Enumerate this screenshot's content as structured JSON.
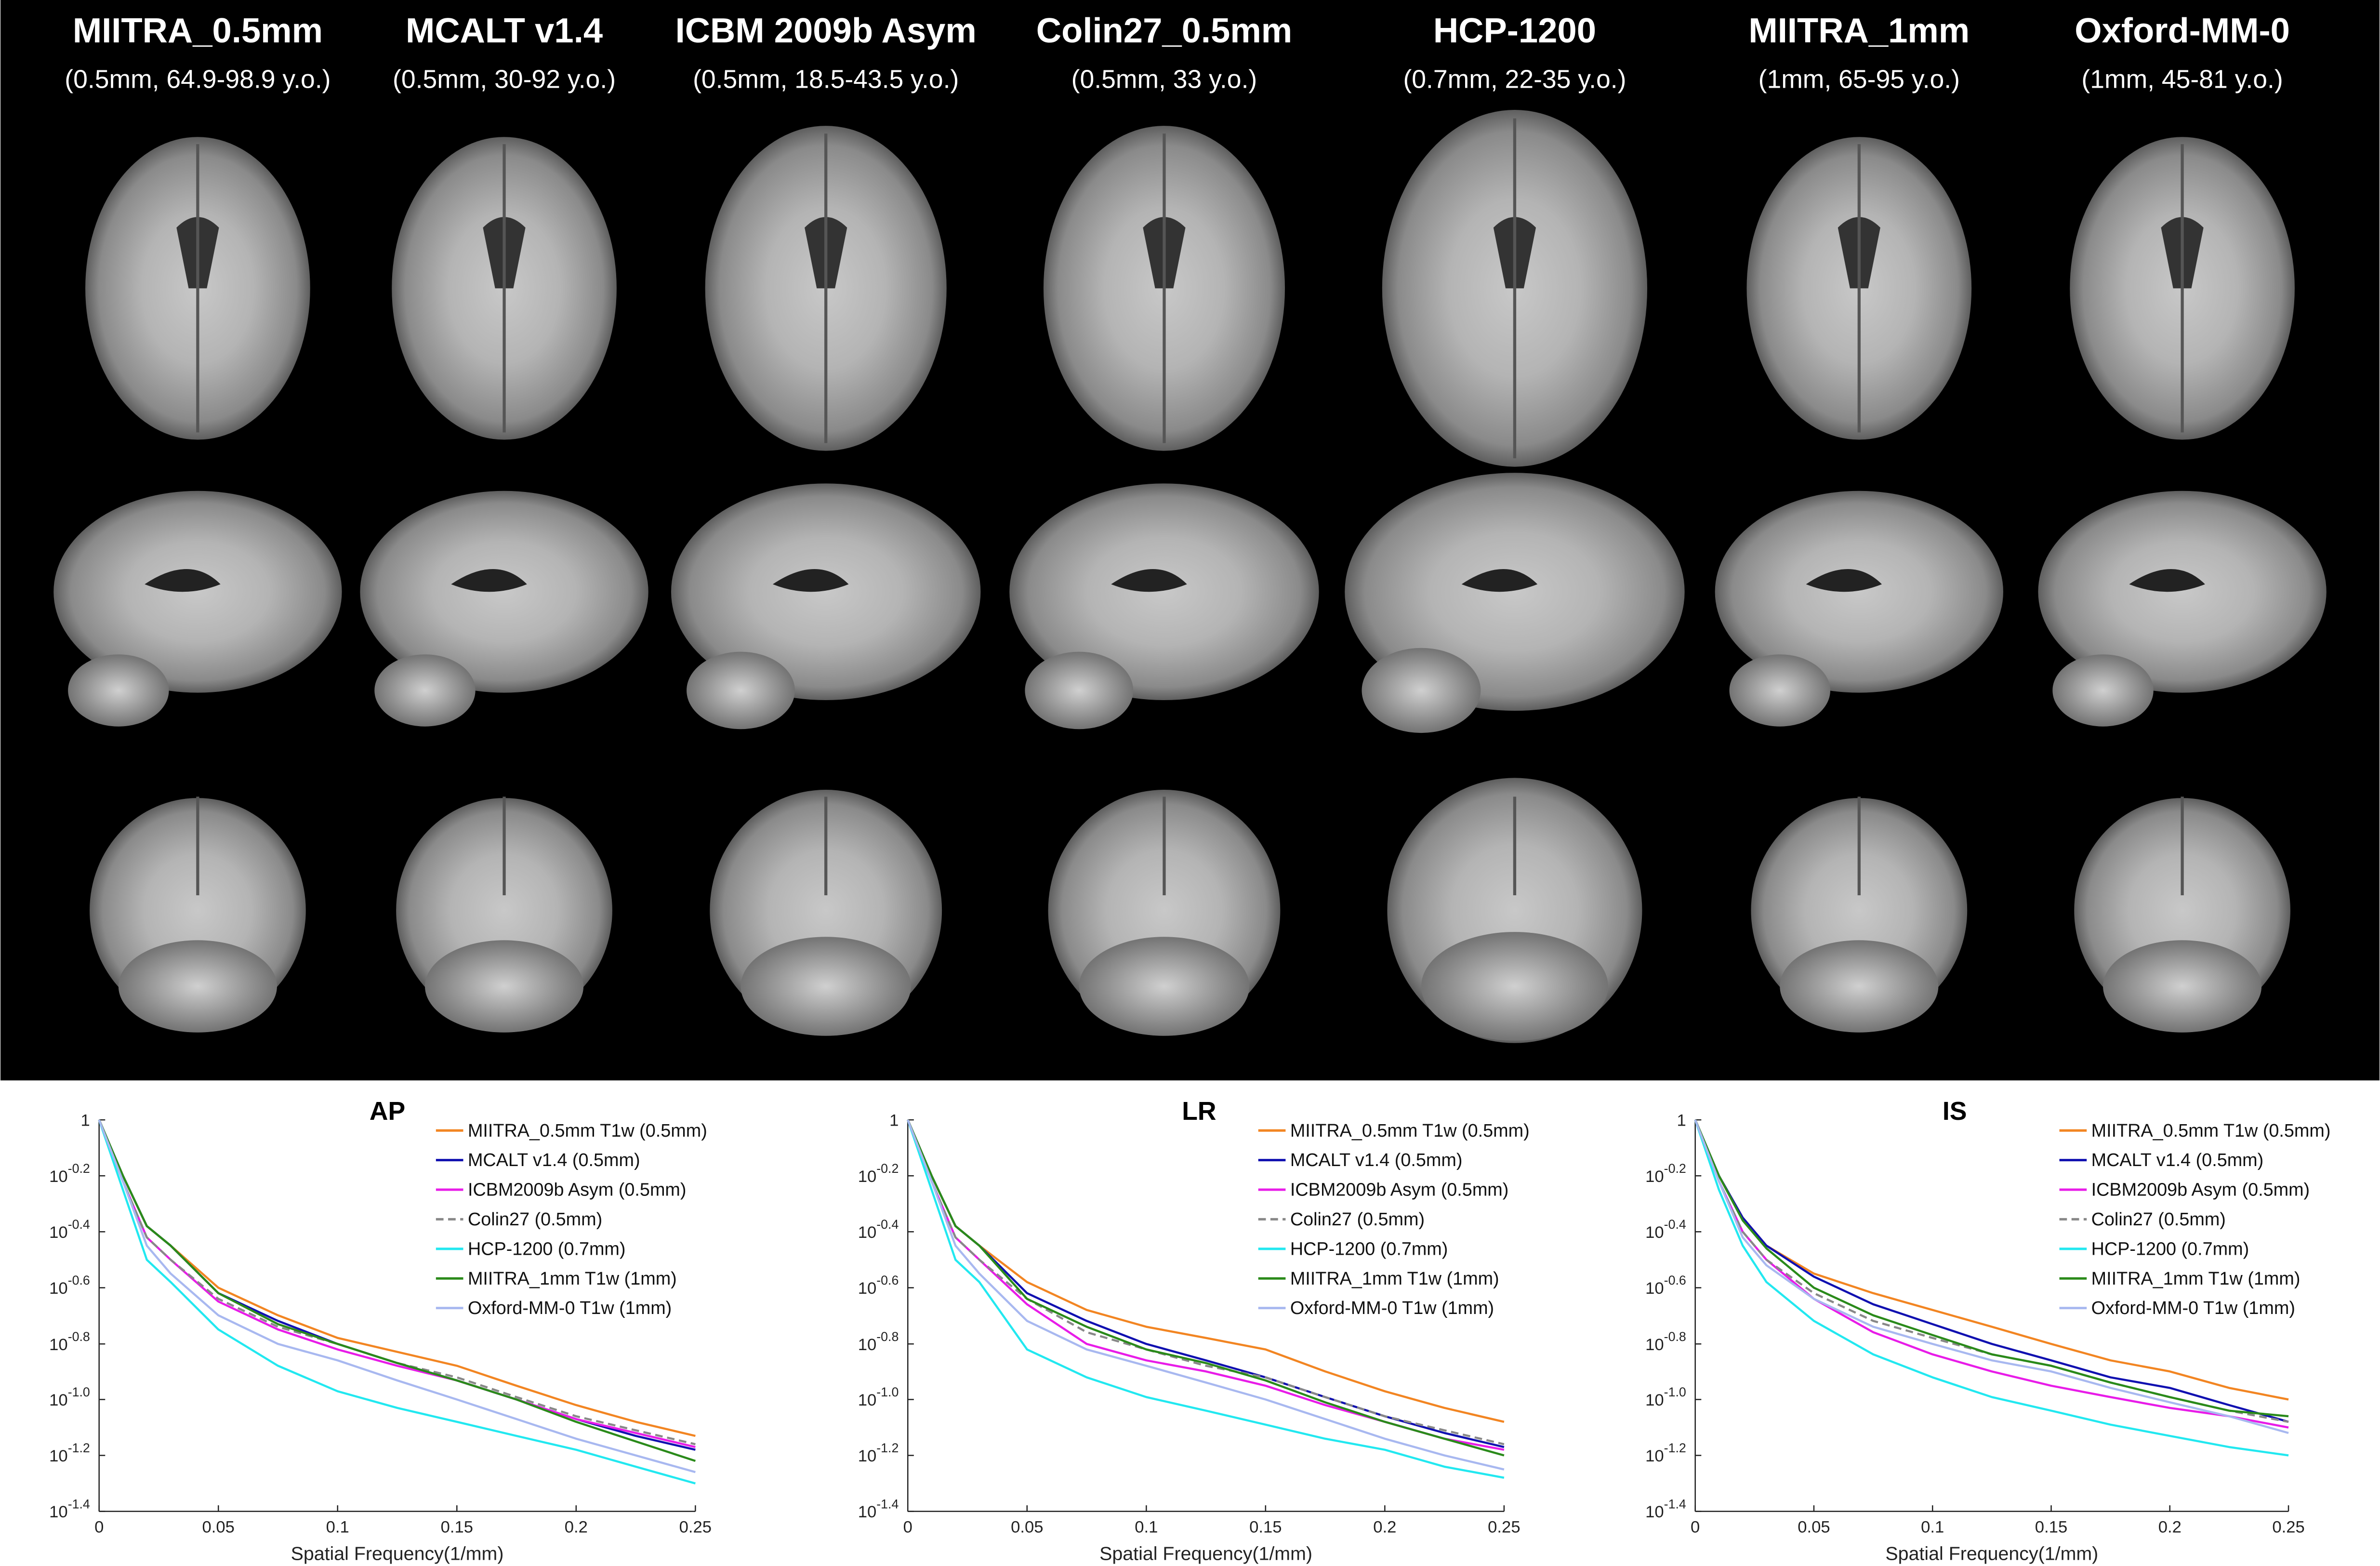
{
  "atlases": [
    {
      "title": "MIITRA_0.5mm",
      "subtitle": "(0.5mm, 64.9-98.9 y.o.)"
    },
    {
      "title": "MCALT v1.4",
      "subtitle": "(0.5mm, 30-92 y.o.)"
    },
    {
      "title": "ICBM 2009b Asym",
      "subtitle": "(0.5mm, 18.5-43.5 y.o.)"
    },
    {
      "title": "Colin27_0.5mm",
      "subtitle": "(0.5mm, 33 y.o.)"
    },
    {
      "title": "HCP-1200",
      "subtitle": "(0.7mm, 22-35 y.o.)"
    },
    {
      "title": "MIITRA_1mm",
      "subtitle": "(1mm, 65-95 y.o.)"
    },
    {
      "title": "Oxford-MM-0",
      "subtitle": "(1mm, 45-81 y.o.)"
    }
  ],
  "chart_data": [
    {
      "type": "line",
      "title": "AP",
      "x_label": "Spatial Frequency(1/mm)",
      "log_y": true,
      "legend": "upper-right",
      "x": [
        0,
        0.01,
        0.02,
        0.03,
        0.05,
        0.075,
        0.1,
        0.125,
        0.15,
        0.175,
        0.2,
        0.225,
        0.25
      ],
      "xlim": [
        0,
        0.25
      ],
      "xticks": [
        0,
        0.05,
        0.1,
        0.15,
        0.2,
        0.25
      ],
      "ylim": [
        0.0398,
        1
      ],
      "yticks": [
        1,
        {
          "value": 0.631,
          "label": "10^-0.2"
        },
        {
          "value": 0.398,
          "label": "10^-0.4"
        },
        {
          "value": 0.251,
          "label": "10^-0.6"
        },
        {
          "value": 0.158,
          "label": "10^-0.8"
        },
        {
          "value": 0.1,
          "label": "10^-1.0"
        },
        {
          "value": 0.0631,
          "label": "10^-1.2"
        },
        {
          "value": 0.0398,
          "label": "10^-1.4"
        }
      ],
      "series": [
        {
          "name": "MIITRA_0.5mm T1w (0.5mm)",
          "color": "#f28522",
          "values": [
            1,
            0.631,
            0.417,
            0.355,
            0.251,
            0.2,
            0.166,
            0.148,
            0.132,
            0.112,
            0.0955,
            0.0832,
            0.0741
          ]
        },
        {
          "name": "MCALT v1.4 (0.5mm)",
          "color": "#1010b0",
          "values": [
            1,
            0.631,
            0.417,
            0.355,
            0.24,
            0.191,
            0.158,
            0.135,
            0.117,
            0.1,
            0.0851,
            0.0741,
            0.0661
          ]
        },
        {
          "name": "ICBM2009b Asym (0.5mm)",
          "color": "#e81ce8",
          "values": [
            1,
            0.603,
            0.38,
            0.316,
            0.224,
            0.178,
            0.151,
            0.132,
            0.117,
            0.1,
            0.0851,
            0.0759,
            0.0676
          ]
        },
        {
          "name": "Colin27 (0.5mm)",
          "color": "#888888",
          "dashed": true,
          "values": [
            1,
            0.603,
            0.38,
            0.316,
            0.229,
            0.182,
            0.158,
            0.135,
            0.12,
            0.102,
            0.0871,
            0.0776,
            0.0692
          ]
        },
        {
          "name": "HCP-1200 (0.7mm)",
          "color": "#22e8f0",
          "values": [
            1,
            0.562,
            0.316,
            0.263,
            0.178,
            0.132,
            0.107,
            0.0933,
            0.0832,
            0.0741,
            0.0661,
            0.0575,
            0.0501
          ]
        },
        {
          "name": "MIITRA_1mm T1w (1mm)",
          "color": "#2a8a1a",
          "values": [
            1,
            0.631,
            0.417,
            0.355,
            0.24,
            0.186,
            0.158,
            0.135,
            0.117,
            0.1,
            0.0832,
            0.0708,
            0.0603
          ]
        },
        {
          "name": "Oxford-MM-0 T1w (1mm)",
          "color": "#a8b8f0",
          "values": [
            1,
            0.603,
            0.355,
            0.282,
            0.2,
            0.158,
            0.138,
            0.117,
            0.1,
            0.0851,
            0.0724,
            0.0631,
            0.055
          ]
        }
      ]
    },
    {
      "type": "line",
      "title": "LR",
      "x_label": "Spatial Frequency(1/mm)",
      "log_y": true,
      "legend": "upper-right",
      "x": [
        0,
        0.01,
        0.02,
        0.03,
        0.05,
        0.075,
        0.1,
        0.125,
        0.15,
        0.175,
        0.2,
        0.225,
        0.25
      ],
      "xlim": [
        0,
        0.25
      ],
      "xticks": [
        0,
        0.05,
        0.1,
        0.15,
        0.2,
        0.25
      ],
      "ylim": [
        0.0398,
        1
      ],
      "yticks": [
        1,
        {
          "value": 0.631,
          "label": "10^-0.2"
        },
        {
          "value": 0.398,
          "label": "10^-0.4"
        },
        {
          "value": 0.251,
          "label": "10^-0.6"
        },
        {
          "value": 0.158,
          "label": "10^-0.8"
        },
        {
          "value": 0.1,
          "label": "10^-1.0"
        },
        {
          "value": 0.0631,
          "label": "10^-1.2"
        },
        {
          "value": 0.0398,
          "label": "10^-1.4"
        }
      ],
      "series": [
        {
          "name": "MIITRA_0.5mm T1w (0.5mm)",
          "color": "#f28522",
          "values": [
            1,
            0.631,
            0.417,
            0.355,
            0.263,
            0.209,
            0.182,
            0.166,
            0.151,
            0.126,
            0.107,
            0.0933,
            0.0832
          ]
        },
        {
          "name": "MCALT v1.4 (0.5mm)",
          "color": "#1010b0",
          "values": [
            1,
            0.631,
            0.417,
            0.355,
            0.24,
            0.191,
            0.158,
            0.138,
            0.12,
            0.102,
            0.0871,
            0.0759,
            0.0676
          ]
        },
        {
          "name": "ICBM2009b Asym (0.5mm)",
          "color": "#e81ce8",
          "values": [
            1,
            0.603,
            0.38,
            0.316,
            0.219,
            0.158,
            0.138,
            0.126,
            0.112,
            0.0955,
            0.0832,
            0.0724,
            0.0661
          ]
        },
        {
          "name": "Colin27 (0.5mm)",
          "color": "#888888",
          "dashed": true,
          "values": [
            1,
            0.603,
            0.38,
            0.316,
            0.229,
            0.174,
            0.151,
            0.132,
            0.12,
            0.102,
            0.0871,
            0.0776,
            0.0692
          ]
        },
        {
          "name": "HCP-1200 (0.7mm)",
          "color": "#22e8f0",
          "values": [
            1,
            0.562,
            0.316,
            0.263,
            0.151,
            0.12,
            0.102,
            0.0912,
            0.0813,
            0.0724,
            0.0661,
            0.0575,
            0.0525
          ]
        },
        {
          "name": "MIITRA_1mm T1w (1mm)",
          "color": "#2a8a1a",
          "values": [
            1,
            0.631,
            0.417,
            0.355,
            0.229,
            0.182,
            0.151,
            0.135,
            0.117,
            0.0977,
            0.0832,
            0.0724,
            0.0631
          ]
        },
        {
          "name": "Oxford-MM-0 T1w (1mm)",
          "color": "#a8b8f0",
          "values": [
            1,
            0.603,
            0.355,
            0.282,
            0.191,
            0.151,
            0.132,
            0.115,
            0.1,
            0.0851,
            0.0724,
            0.0631,
            0.0562
          ]
        }
      ]
    },
    {
      "type": "line",
      "title": "IS",
      "x_label": "Spatial Frequency(1/mm)",
      "log_y": true,
      "legend": "upper-right",
      "x": [
        0,
        0.01,
        0.02,
        0.03,
        0.05,
        0.075,
        0.1,
        0.125,
        0.15,
        0.175,
        0.2,
        0.225,
        0.25
      ],
      "xlim": [
        0,
        0.25
      ],
      "xticks": [
        0,
        0.05,
        0.1,
        0.15,
        0.2,
        0.25
      ],
      "ylim": [
        0.0398,
        1
      ],
      "yticks": [
        1,
        {
          "value": 0.631,
          "label": "10^-0.2"
        },
        {
          "value": 0.398,
          "label": "10^-0.4"
        },
        {
          "value": 0.251,
          "label": "10^-0.6"
        },
        {
          "value": 0.158,
          "label": "10^-0.8"
        },
        {
          "value": 0.1,
          "label": "10^-1.0"
        },
        {
          "value": 0.0631,
          "label": "10^-1.2"
        },
        {
          "value": 0.0398,
          "label": "10^-1.4"
        }
      ],
      "series": [
        {
          "name": "MIITRA_0.5mm T1w (0.5mm)",
          "color": "#f28522",
          "values": [
            1,
            0.631,
            0.447,
            0.355,
            0.282,
            0.24,
            0.209,
            0.182,
            0.158,
            0.138,
            0.126,
            0.11,
            0.1
          ]
        },
        {
          "name": "MCALT v1.4 (0.5mm)",
          "color": "#1010b0",
          "values": [
            1,
            0.631,
            0.447,
            0.355,
            0.275,
            0.219,
            0.186,
            0.158,
            0.138,
            0.12,
            0.11,
            0.0955,
            0.0832
          ]
        },
        {
          "name": "ICBM2009b Asym (0.5mm)",
          "color": "#e81ce8",
          "values": [
            1,
            0.603,
            0.398,
            0.316,
            0.229,
            0.174,
            0.145,
            0.126,
            0.112,
            0.102,
            0.0933,
            0.0871,
            0.0794
          ]
        },
        {
          "name": "Colin27 (0.5mm)",
          "color": "#888888",
          "dashed": true,
          "values": [
            1,
            0.603,
            0.398,
            0.316,
            0.24,
            0.191,
            0.166,
            0.145,
            0.132,
            0.115,
            0.102,
            0.0912,
            0.0832
          ]
        },
        {
          "name": "HCP-1200 (0.7mm)",
          "color": "#22e8f0",
          "values": [
            1,
            0.562,
            0.355,
            0.263,
            0.191,
            0.145,
            0.12,
            0.102,
            0.0912,
            0.0813,
            0.0741,
            0.0676,
            0.0631
          ]
        },
        {
          "name": "MIITRA_1mm T1w (1mm)",
          "color": "#2a8a1a",
          "values": [
            1,
            0.631,
            0.437,
            0.347,
            0.251,
            0.2,
            0.17,
            0.145,
            0.132,
            0.115,
            0.102,
            0.0912,
            0.0871
          ]
        },
        {
          "name": "Oxford-MM-0 T1w (1mm)",
          "color": "#a8b8f0",
          "values": [
            1,
            0.603,
            0.38,
            0.302,
            0.229,
            0.182,
            0.158,
            0.138,
            0.126,
            0.11,
            0.0977,
            0.0871,
            0.0759
          ]
        }
      ]
    }
  ]
}
